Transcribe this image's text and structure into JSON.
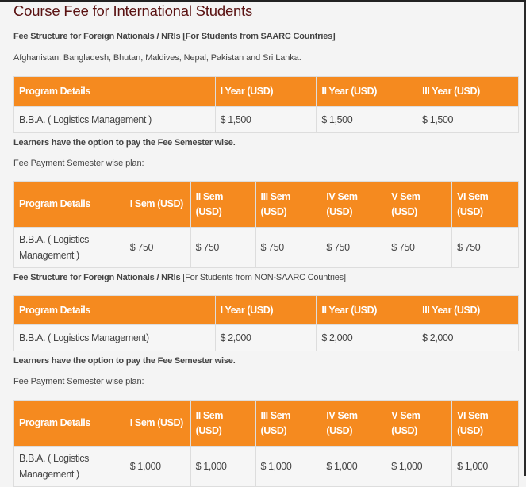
{
  "title": "Course Fee for International Students",
  "saarc": {
    "heading": "Fee Structure for Foreign Nationals / NRIs [For Students from SAARC Countries]",
    "countries": "Afghanistan, Bangladesh, Bhutan, Maldives, Nepal, Pakistan and Sri Lanka.",
    "year_table": {
      "headers": [
        "Program Details",
        "I Year (USD)",
        "II Year (USD)",
        "III Year (USD)"
      ],
      "row": [
        "B.B.A. ( Logistics Management )",
        "$ 1,500",
        "$ 1,500",
        "$ 1,500"
      ]
    },
    "option_note": "Learners have the option to pay the Fee Semester wise.",
    "plan_label": "Fee Payment Semester wise plan:",
    "sem_table": {
      "headers": [
        "Program Details",
        "I Sem (USD)",
        "II Sem (USD)",
        "III Sem (USD)",
        "IV Sem (USD)",
        "V Sem (USD)",
        "VI Sem (USD)"
      ],
      "row": [
        "B.B.A. ( Logistics Management )",
        "$ 750",
        "$ 750",
        "$ 750",
        "$ 750",
        "$ 750",
        "$ 750"
      ]
    }
  },
  "non_saarc": {
    "heading_bold": "Fee Structure for Foreign Nationals / NRIs",
    "heading_normal": " [For Students from NON-SAARC Countries]",
    "year_table": {
      "headers": [
        "Program Details",
        "I Year (USD)",
        "II Year (USD)",
        "III Year (USD)"
      ],
      "row": [
        "B.B.A. ( Logistics Management)",
        "$ 2,000",
        "$ 2,000",
        "$ 2,000"
      ]
    },
    "option_note": "Learners have the option to pay the Fee Semester wise.",
    "plan_label": "Fee Payment Semester wise plan:",
    "sem_table": {
      "headers": [
        "Program Details",
        "I Sem (USD)",
        "II Sem (USD)",
        "III Sem (USD)",
        "IV Sem (USD)",
        "V Sem (USD)",
        "VI Sem (USD)"
      ],
      "row": [
        "B.B.A. ( Logistics Management )",
        "$ 1,000",
        "$ 1,000",
        "$ 1,000",
        "$ 1,000",
        "$ 1,000",
        "$ 1,000"
      ]
    }
  },
  "colors": {
    "header_bg": "#f58a1f",
    "title": "#5a1212"
  }
}
